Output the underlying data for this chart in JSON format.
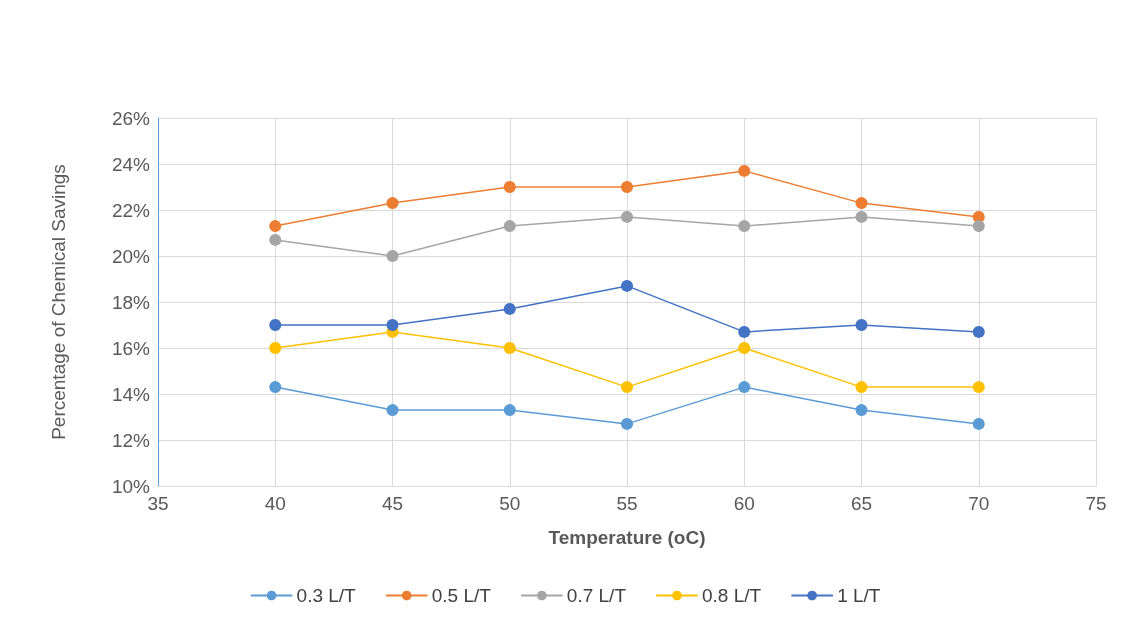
{
  "chart_data": {
    "type": "line",
    "xlabel": "Temperature (oC)",
    "ylabel": "Percentage of Chemical Savings",
    "x": [
      40,
      45,
      50,
      55,
      60,
      65,
      70
    ],
    "series": [
      {
        "name": "0.3 L/T",
        "color": "#5b9bd5",
        "values": [
          14.3,
          13.3,
          13.3,
          12.7,
          14.3,
          13.3,
          12.7
        ]
      },
      {
        "name": "0.5 L/T",
        "color": "#ed7d31",
        "values": [
          21.3,
          22.3,
          23.0,
          23.0,
          23.7,
          22.3,
          21.7
        ]
      },
      {
        "name": "0.7 L/T",
        "color": "#a5a5a5",
        "values": [
          20.7,
          20.0,
          21.3,
          21.7,
          21.3,
          21.7,
          21.3
        ]
      },
      {
        "name": "0.8 L/T",
        "color": "#ffc000",
        "values": [
          16.0,
          16.7,
          16.0,
          14.3,
          16.0,
          14.3,
          14.3
        ]
      },
      {
        "name": "1 L/T",
        "color": "#4472c4",
        "values": [
          17.0,
          17.0,
          17.7,
          18.7,
          16.7,
          17.0,
          16.7
        ]
      }
    ],
    "xlim": [
      35,
      75
    ],
    "xticks": [
      35,
      40,
      45,
      50,
      55,
      60,
      65,
      70,
      75
    ],
    "ylim": [
      10,
      26
    ],
    "yticks": [
      {
        "value": 10,
        "label": "10%"
      },
      {
        "value": 12,
        "label": "12%"
      },
      {
        "value": 14,
        "label": "14%"
      },
      {
        "value": 16,
        "label": "16%"
      },
      {
        "value": 18,
        "label": "18%"
      },
      {
        "value": 20,
        "label": "20%"
      },
      {
        "value": 22,
        "label": "22%"
      },
      {
        "value": 24,
        "label": "24%"
      },
      {
        "value": 26,
        "label": "26%"
      }
    ],
    "grid": true,
    "legend": "bottom",
    "marker": "circle",
    "line_style": "solid"
  }
}
